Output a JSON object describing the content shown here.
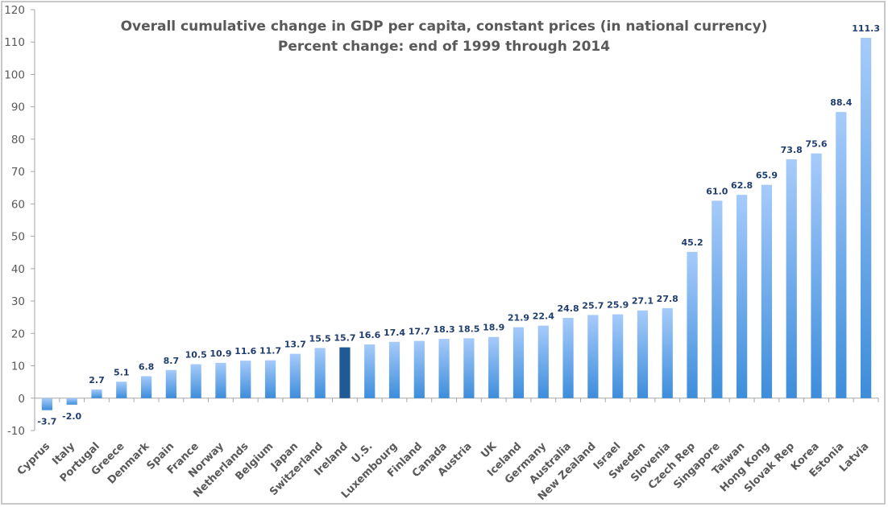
{
  "chart_data": {
    "type": "bar",
    "title": "Overall cumulative change in GDP per capita, constant prices (in national currency)",
    "subtitle": "Percent change: end of 1999 through 2014",
    "xlabel": "",
    "ylabel": "",
    "ylim": [
      -10,
      120
    ],
    "yticks": [
      -10,
      0,
      10,
      20,
      30,
      40,
      50,
      60,
      70,
      80,
      90,
      100,
      110,
      120
    ],
    "grid": false,
    "legend": "none",
    "categories": [
      "Cyprus",
      "Italy",
      "Portugal",
      "Greece",
      "Denmark",
      "Spain",
      "France",
      "Norway",
      "Netherlands",
      "Belgium",
      "Japan",
      "Switzerland",
      "Ireland",
      "U.S.",
      "Luxembourg",
      "Finland",
      "Canada",
      "Austria",
      "UK",
      "Iceland",
      "Germany",
      "Australia",
      "New Zealand",
      "Israel",
      "Sweden",
      "Slovenia",
      "Czech Rep",
      "Singapore",
      "Taiwan",
      "Hong Kong",
      "Slovak Rep",
      "Korea",
      "Estonia",
      "Latvia"
    ],
    "values": [
      -3.7,
      -2.0,
      2.7,
      5.1,
      6.8,
      8.7,
      10.5,
      10.9,
      11.6,
      11.7,
      13.7,
      15.5,
      15.7,
      16.6,
      17.4,
      17.7,
      18.3,
      18.5,
      18.9,
      21.9,
      22.4,
      24.8,
      25.7,
      25.9,
      27.1,
      27.8,
      45.2,
      61.0,
      62.8,
      65.9,
      73.8,
      75.6,
      88.4,
      111.3
    ],
    "data_labels": [
      "-3.7",
      "-2.0",
      "2.7",
      "5.1",
      "6.8",
      "8.7",
      "10.5",
      "10.9",
      "11.6",
      "11.7",
      "13.7",
      "15.5",
      "15.7",
      "16.6",
      "17.4",
      "17.7",
      "18.3",
      "18.5",
      "18.9",
      "21.9",
      "22.4",
      "24.8",
      "25.7",
      "25.9",
      "27.1",
      "27.8",
      "45.2",
      "61.0",
      "62.8",
      "65.9",
      "73.8",
      "75.6",
      "88.4",
      "111.3"
    ],
    "highlight": "Ireland",
    "colors": {
      "bar_top": "#a6cbfa",
      "bar_bottom": "#3d8ddb",
      "highlight": "#1f5a94",
      "label": "#1f3d6e",
      "axis": "#a6a6a6"
    }
  }
}
